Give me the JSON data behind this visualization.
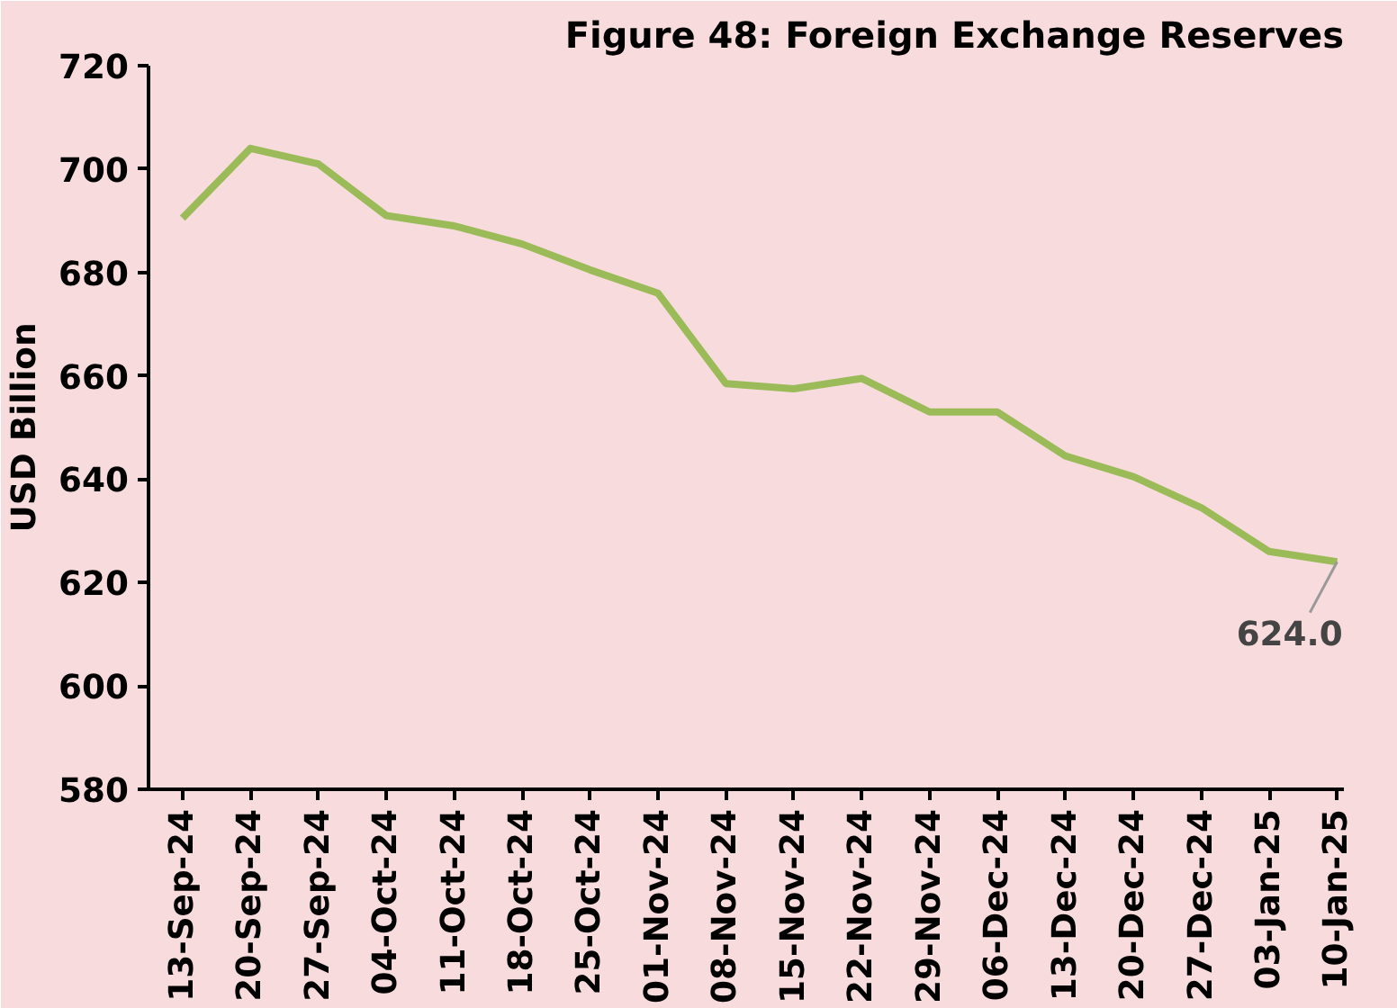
{
  "chart_data": {
    "type": "line",
    "title": "Figure 48: Foreign Exchange Reserves",
    "ylabel": "USD Billion",
    "categories": [
      "13-Sep-24",
      "20-Sep-24",
      "27-Sep-24",
      "04-Oct-24",
      "11-Oct-24",
      "18-Oct-24",
      "25-Oct-24",
      "01-Nov-24",
      "08-Nov-24",
      "15-Nov-24",
      "22-Nov-24",
      "29-Nov-24",
      "06-Dec-24",
      "13-Dec-24",
      "20-Dec-24",
      "27-Dec-24",
      "03-Jan-25",
      "10-Jan-25"
    ],
    "series": [
      {
        "color": "#9bbb59",
        "values": [
          690.5,
          704,
          701,
          691,
          689,
          685.5,
          680.5,
          676,
          658.5,
          657.5,
          659.5,
          653,
          653,
          644.5,
          640.5,
          634.5,
          626,
          624
        ]
      }
    ],
    "ylim": [
      580,
      720
    ],
    "yticks": [
      580,
      600,
      620,
      640,
      660,
      680,
      700,
      720
    ],
    "grid": false,
    "marker": "none",
    "line_style": "solid",
    "annotations": [
      {
        "text": "624.0",
        "x": "10-Jan-25",
        "y": 624
      }
    ]
  }
}
